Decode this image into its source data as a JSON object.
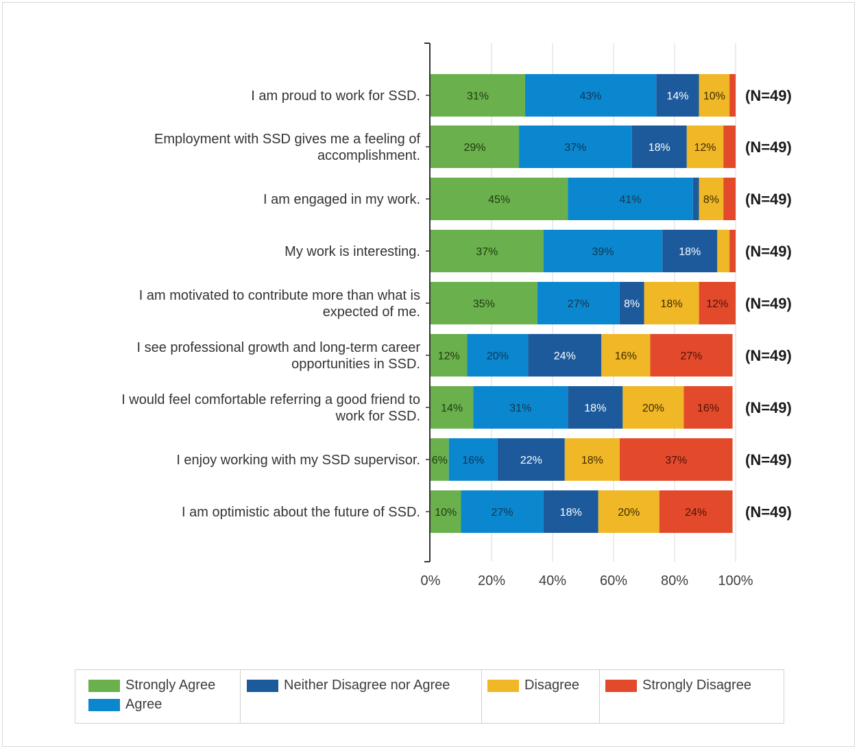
{
  "chart_data": {
    "type": "bar",
    "orientation": "horizontal",
    "stacked": true,
    "title": "",
    "xlabel": "",
    "ylabel": "",
    "xlim": [
      0,
      100
    ],
    "x_ticks": [
      "0%",
      "20%",
      "40%",
      "60%",
      "80%",
      "100%"
    ],
    "grid": true,
    "legend_position": "bottom",
    "categories": [
      "I am proud to work for SSD.",
      "Employment with SSD gives me a feeling of accomplishment.",
      "I am engaged in my work.",
      "My work is interesting.",
      "I am motivated to contribute more than what is expected of me.",
      "I see professional growth and long-term career opportunities in SSD.",
      "I would feel comfortable referring a good friend to work for SSD.",
      "I enjoy working with my SSD supervisor.",
      "I am optimistic about the future of SSD."
    ],
    "category_lines": [
      [
        "I am proud to work for SSD."
      ],
      [
        "Employment with SSD gives me a feeling of",
        "accomplishment."
      ],
      [
        "I am engaged in my work."
      ],
      [
        "My work is interesting."
      ],
      [
        "I am motivated to contribute more than what is",
        "expected of me."
      ],
      [
        "I see professional growth and long-term career",
        "opportunities in SSD."
      ],
      [
        "I would feel comfortable referring a good friend to",
        "work for SSD."
      ],
      [
        "I enjoy working with my SSD supervisor."
      ],
      [
        "I am optimistic about the future of SSD."
      ]
    ],
    "n_labels": [
      "(N=49)",
      "(N=49)",
      "(N=49)",
      "(N=49)",
      "(N=49)",
      "(N=49)",
      "(N=49)",
      "(N=49)",
      "(N=49)"
    ],
    "series": [
      {
        "name": "Strongly Agree",
        "color": "#6ab04c",
        "values": [
          31,
          29,
          45,
          37,
          35,
          12,
          14,
          6,
          10
        ],
        "labels": [
          "31%",
          "29%",
          "45%",
          "37%",
          "35%",
          "12%",
          "14%",
          "6%",
          "10%"
        ]
      },
      {
        "name": "Agree",
        "color": "#0a87cf",
        "values": [
          43,
          37,
          41,
          39,
          27,
          20,
          31,
          16,
          27
        ],
        "labels": [
          "43%",
          "37%",
          "41%",
          "39%",
          "27%",
          "20%",
          "31%",
          "16%",
          "27%"
        ]
      },
      {
        "name": "Neither Disagree nor Agree",
        "color": "#1c5a9c",
        "values": [
          14,
          18,
          2,
          18,
          8,
          24,
          18,
          22,
          18
        ],
        "labels": [
          "14%",
          "18%",
          "",
          "18%",
          "8%",
          "24%",
          "18%",
          "22%",
          "18%"
        ]
      },
      {
        "name": "Disagree",
        "color": "#f0b726",
        "values": [
          10,
          12,
          8,
          4,
          18,
          16,
          20,
          18,
          20
        ],
        "labels": [
          "10%",
          "12%",
          "8%",
          "",
          "18%",
          "16%",
          "20%",
          "18%",
          "20%"
        ]
      },
      {
        "name": "Strongly Disagree",
        "color": "#e34a2b",
        "values": [
          2,
          4,
          4,
          2,
          12,
          27,
          16,
          37,
          24
        ],
        "labels": [
          "",
          "",
          "",
          "",
          "12%",
          "27%",
          "16%",
          "37%",
          "24%"
        ]
      }
    ],
    "label_colors": {
      "Strongly Agree": "#1f3a10",
      "Agree": "#12354f",
      "Neither Disagree nor Agree": "#ffffff",
      "Disagree": "#3d2b00",
      "Strongly Disagree": "#4a1208"
    }
  },
  "legend": {
    "items": [
      {
        "label": "Strongly Agree",
        "color": "#6ab04c"
      },
      {
        "label": "Agree",
        "color": "#0a87cf"
      },
      {
        "label": "Neither Disagree nor Agree",
        "color": "#1c5a9c"
      },
      {
        "label": "Disagree",
        "color": "#f0b726"
      },
      {
        "label": "Strongly Disagree",
        "color": "#e34a2b"
      }
    ]
  }
}
